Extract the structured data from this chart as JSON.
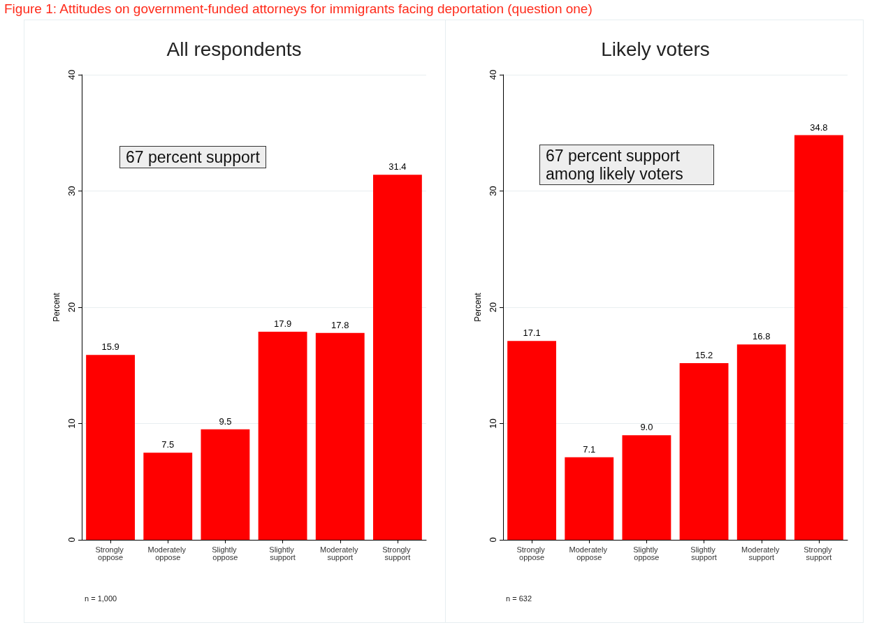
{
  "chart_data": [
    {
      "type": "bar",
      "title": "All respondents",
      "ylabel": "Percent",
      "categories": [
        "Strongly oppose",
        "Moderately oppose",
        "Slightly oppose",
        "Slightly support",
        "Moderately support",
        "Strongly support"
      ],
      "values": [
        15.9,
        7.5,
        9.5,
        17.9,
        17.8,
        31.4
      ],
      "value_labels": [
        "15.9",
        "7.5",
        "9.5",
        "17.9",
        "17.8",
        "31.4"
      ],
      "color": "#ff0000",
      "ylim": [
        0,
        40
      ],
      "yticks": [
        0,
        10,
        20,
        30,
        40
      ],
      "grid": "y",
      "annotations": [
        "Figure 1: Attitudes on government-funded attorneys for immigrants facing deportation (question one)",
        "67 percent support",
        "n = 1,000"
      ]
    },
    {
      "type": "bar",
      "title": "Likely voters",
      "ylabel": "Percent",
      "categories": [
        "Strongly oppose",
        "Moderately oppose",
        "Slightly oppose",
        "Slightly support",
        "Moderately support",
        "Strongly support"
      ],
      "values": [
        17.1,
        7.1,
        9.0,
        15.2,
        16.8,
        34.8
      ],
      "value_labels": [
        "17.1",
        "7.1",
        "9.0",
        "15.2",
        "16.8",
        "34.8"
      ],
      "color": "#ff0000",
      "ylim": [
        0,
        40
      ],
      "yticks": [
        0,
        10,
        20,
        30,
        40
      ],
      "grid": "y",
      "annotations": [
        "67 percent support among likely voters",
        "n = 632"
      ]
    }
  ]
}
